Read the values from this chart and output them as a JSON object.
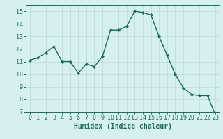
{
  "x": [
    0,
    1,
    2,
    3,
    4,
    5,
    6,
    7,
    8,
    9,
    10,
    11,
    12,
    13,
    14,
    15,
    16,
    17,
    18,
    19,
    20,
    21,
    22,
    23
  ],
  "y": [
    11.1,
    11.3,
    11.7,
    12.2,
    11.0,
    11.0,
    10.1,
    10.8,
    10.6,
    11.4,
    13.5,
    13.5,
    13.8,
    15.0,
    14.9,
    14.7,
    13.0,
    11.5,
    10.0,
    8.9,
    8.4,
    8.3,
    8.3,
    6.7
  ],
  "line_color": "#1a6b5a",
  "marker": "D",
  "marker_size": 2,
  "bg_color": "#d6f0ef",
  "grid_color": "#c0dedd",
  "xlabel": "Humidex (Indice chaleur)",
  "xlabel_fontsize": 7,
  "tick_fontsize": 6,
  "ylim": [
    7,
    15.5
  ],
  "xlim": [
    -0.5,
    23.5
  ],
  "yticks": [
    7,
    8,
    9,
    10,
    11,
    12,
    13,
    14,
    15
  ],
  "xticks": [
    0,
    1,
    2,
    3,
    4,
    5,
    6,
    7,
    8,
    9,
    10,
    11,
    12,
    13,
    14,
    15,
    16,
    17,
    18,
    19,
    20,
    21,
    22,
    23
  ]
}
